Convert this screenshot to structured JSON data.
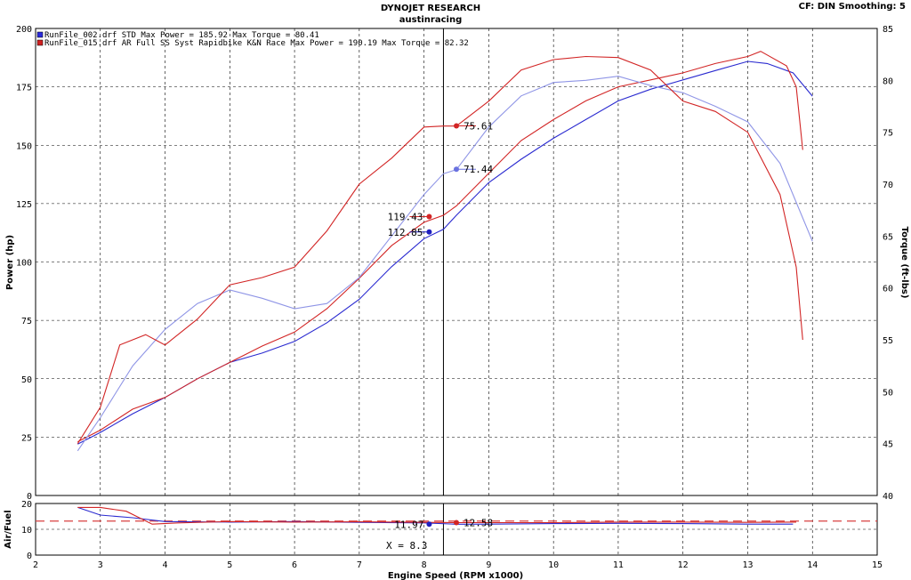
{
  "header": {
    "title": "DYNOJET RESEARCH",
    "subtitle": "austinracing",
    "settings": "CF: DIN  Smoothing: 5"
  },
  "legend": [
    {
      "text": "RunFile_002.drf STD Max Power = 185.92     Max Torque = 80.41",
      "color": "#2a2adc"
    },
    {
      "text": "RunFile_015.drf AR Full SS Syst Rapidbike K&N Race Max Power = 190.19     Max Torque = 82.32",
      "color": "#d02020"
    }
  ],
  "colors": {
    "std_power": "#2a2ad0",
    "std_torque": "#8f95e6",
    "ar_power": "#d22525",
    "ar_torque": "#d22525",
    "afr_ref": "#d94040"
  },
  "chart_data": [
    {
      "type": "line",
      "title": "",
      "xlabel": "Engine Speed (RPM x1000)",
      "ylabel": "Power (hp)",
      "y2label": "Torque (ft-lbs)",
      "xlim": [
        2,
        15
      ],
      "ylim": [
        0,
        200
      ],
      "y2lim": [
        40,
        85
      ],
      "xticks": [
        "2",
        "3",
        "4",
        "5",
        "6",
        "7",
        "8",
        "9",
        "10",
        "11",
        "12",
        "13",
        "14",
        "15"
      ],
      "yticks": [
        "0",
        "25",
        "50",
        "75",
        "100",
        "125",
        "150",
        "175",
        "200"
      ],
      "y2ticks": [
        "40",
        "45",
        "50",
        "55",
        "60",
        "65",
        "70",
        "75",
        "80",
        "85"
      ],
      "grid": true,
      "legend_position": "top-left",
      "cursor_x": 8.3,
      "series": [
        {
          "name": "RunFile_002.drf STD Max Power = 185.92",
          "axis": "left",
          "x": [
            2.65,
            3,
            3.5,
            4,
            4.5,
            5,
            5.5,
            6,
            6.5,
            7,
            7.5,
            8,
            8.3,
            8.5,
            9,
            9.5,
            10,
            10.5,
            11,
            11.5,
            12,
            12.5,
            13,
            13.3,
            13.7,
            14
          ],
          "y": [
            22,
            27,
            35,
            42,
            50,
            57,
            61,
            66,
            74,
            84,
            98,
            110,
            114,
            120,
            134,
            144,
            153,
            161,
            169,
            174,
            178,
            182,
            185.9,
            185,
            181,
            171
          ]
        },
        {
          "name": "RunFile_015.drf AR Full SS Syst Rapidbike K&N Race Max Power = 190.19",
          "axis": "left",
          "x": [
            2.65,
            3,
            3.5,
            4,
            4.5,
            5,
            5.5,
            6,
            6.5,
            7,
            7.5,
            8,
            8.3,
            8.5,
            9,
            9.5,
            10,
            10.5,
            11,
            11.5,
            12,
            12.5,
            13,
            13.2,
            13.6,
            13.75,
            13.85
          ],
          "y": [
            23,
            28,
            37,
            42,
            50,
            57,
            64,
            70,
            80,
            93,
            107,
            117,
            120,
            124,
            138,
            152,
            161,
            169,
            175,
            178,
            181,
            185,
            188,
            190.2,
            184,
            175,
            148
          ]
        },
        {
          "name": "RunFile_002.drf STD Max Torque = 80.41",
          "axis": "right",
          "x": [
            2.65,
            3,
            3.5,
            4,
            4.5,
            5,
            5.5,
            6,
            6.5,
            7,
            7.5,
            8,
            8.3,
            8.5,
            9,
            9.5,
            10,
            10.5,
            11,
            11.5,
            12,
            12.5,
            13,
            13.5,
            14
          ],
          "y": [
            44.3,
            47.5,
            52.5,
            56,
            58.5,
            59.8,
            59,
            58,
            58.5,
            61,
            65,
            69,
            71,
            71.4,
            75.5,
            78.5,
            79.8,
            80,
            80.4,
            79.5,
            78.8,
            77.5,
            76,
            72,
            64.5
          ]
        },
        {
          "name": "RunFile_015.drf AR Full SS Syst Rapidbike K&N Race Max Torque = 82.32",
          "axis": "right",
          "x": [
            2.65,
            3,
            3.3,
            3.7,
            4,
            4.5,
            5,
            5.5,
            6,
            6.5,
            7,
            7.5,
            8,
            8.3,
            8.5,
            9,
            9.5,
            10,
            10.5,
            11,
            11.5,
            12,
            12.5,
            13,
            13.5,
            13.75,
            13.85
          ],
          "y": [
            45,
            48.5,
            54.5,
            55.5,
            54.5,
            57,
            60.3,
            61,
            62,
            65.5,
            70,
            72.5,
            75.5,
            75.6,
            75.6,
            78,
            81,
            82,
            82.3,
            82.2,
            81,
            78,
            77,
            75,
            69,
            62,
            55
          ]
        }
      ],
      "markers": [
        {
          "label": "75.61",
          "x": 8.5,
          "axis": "right",
          "y": 75.61,
          "color": "#d22525"
        },
        {
          "label": "71.44",
          "x": 8.5,
          "axis": "right",
          "y": 71.44,
          "color": "#6a72e0"
        },
        {
          "label": "119.43",
          "x": 8.08,
          "axis": "left",
          "y": 119.43,
          "color": "#d22525"
        },
        {
          "label": "112.85",
          "x": 8.08,
          "axis": "left",
          "y": 112.85,
          "color": "#1f1fbf"
        }
      ]
    },
    {
      "type": "line",
      "title": "",
      "xlabel": "Engine Speed (RPM x1000)",
      "ylabel": "Air/Fuel",
      "xlim": [
        2,
        15
      ],
      "ylim": [
        0,
        20
      ],
      "yticks": [
        "0",
        "10",
        "20"
      ],
      "grid": true,
      "reference_line": 13.2,
      "cursor_readout": "X = 8.3",
      "series": [
        {
          "name": "RunFile_002.drf STD",
          "x": [
            2.65,
            3,
            3.5,
            4,
            5,
            6,
            7,
            8,
            8.5,
            9,
            10,
            11,
            12,
            13,
            13.7
          ],
          "y": [
            18.5,
            15.5,
            14.5,
            13,
            12.8,
            13,
            12.7,
            12.5,
            11.97,
            12,
            12.2,
            12.3,
            12.2,
            12,
            12
          ]
        },
        {
          "name": "RunFile_015.drf AR Full SS Syst Rapidbike K&N Race",
          "x": [
            2.65,
            3,
            3.4,
            3.8,
            4.2,
            5,
            6,
            7,
            8,
            8.5,
            9,
            10,
            11,
            12,
            13,
            13.75
          ],
          "y": [
            18.5,
            18.5,
            17,
            12,
            12.5,
            13,
            12.8,
            12.9,
            12.7,
            12.58,
            12.6,
            12.6,
            12.8,
            12.8,
            12.7,
            12.8
          ]
        }
      ],
      "markers": [
        {
          "label": "11.97",
          "x": 8.08,
          "y": 11.97,
          "color": "#1f1fbf"
        },
        {
          "label": "12.58",
          "x": 8.5,
          "y": 12.58,
          "color": "#d22525"
        }
      ]
    }
  ]
}
